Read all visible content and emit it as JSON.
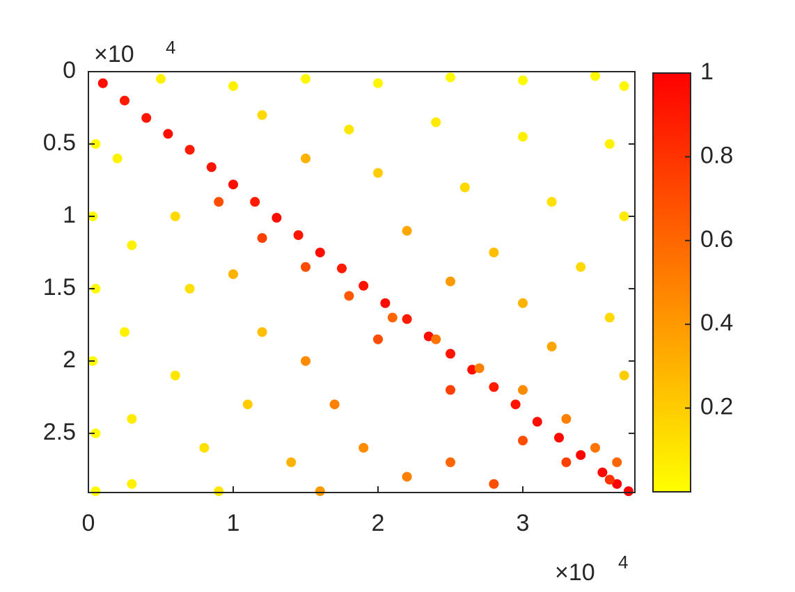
{
  "chart_data": {
    "type": "scatter",
    "x": [
      1000,
      2500,
      4000,
      5500,
      7000,
      8500,
      10000,
      11500,
      13000,
      14500,
      16000,
      17500,
      19000,
      20500,
      22000,
      23500,
      25000,
      26500,
      28000,
      29500,
      31000,
      32500,
      34000,
      35500,
      36500,
      37300,
      9000,
      12000,
      15000,
      18000,
      21000,
      24000,
      27000,
      30000,
      33000,
      35000,
      36500,
      20000,
      25000,
      30000,
      33000,
      36000,
      5000,
      10000,
      15000,
      20000,
      25000,
      30000,
      35000,
      37000,
      12000,
      18000,
      24000,
      30000,
      36000,
      15000,
      20000,
      26000,
      32000,
      37000,
      22000,
      28000,
      34000,
      25000,
      30000,
      36000,
      32000,
      37000,
      500,
      300,
      500,
      300,
      500,
      500,
      2000,
      3000,
      2500,
      3000,
      3000,
      6000,
      7000,
      6000,
      8000,
      9000,
      10000,
      12000,
      11000,
      14000,
      15000,
      17000,
      19000,
      22000,
      25000,
      28000,
      16000
    ],
    "values": [
      800,
      2000,
      3200,
      4300,
      5400,
      6600,
      7800,
      9000,
      10100,
      11300,
      12500,
      13600,
      14800,
      16000,
      17100,
      18300,
      19500,
      20600,
      21800,
      23000,
      24200,
      25300,
      26500,
      27700,
      28500,
      29000,
      9000,
      11500,
      13500,
      15500,
      17000,
      18500,
      20500,
      22000,
      24000,
      26000,
      27000,
      18500,
      22000,
      25500,
      27000,
      28200,
      500,
      1000,
      500,
      800,
      400,
      600,
      300,
      1000,
      3000,
      4000,
      3500,
      4500,
      5000,
      6000,
      7000,
      8000,
      9000,
      10000,
      11000,
      12500,
      13500,
      14500,
      16000,
      17000,
      19000,
      21000,
      5000,
      10000,
      15000,
      20000,
      25000,
      29000,
      6000,
      12000,
      18000,
      24000,
      28500,
      10000,
      15000,
      21000,
      26000,
      29000,
      14000,
      18000,
      23000,
      27000,
      20000,
      23000,
      26000,
      28000,
      27000,
      28500,
      29000
    ],
    "color_values": [
      0.95,
      0.9,
      0.92,
      0.95,
      0.9,
      0.93,
      0.95,
      0.9,
      0.95,
      0.92,
      0.95,
      0.9,
      0.93,
      0.95,
      0.9,
      0.95,
      0.92,
      0.95,
      0.9,
      0.93,
      0.95,
      0.97,
      0.98,
      0.98,
      1.0,
      1.0,
      0.7,
      0.75,
      0.7,
      0.65,
      0.6,
      0.55,
      0.5,
      0.45,
      0.5,
      0.55,
      0.6,
      0.7,
      0.75,
      0.7,
      0.75,
      0.8,
      0.05,
      0.05,
      0.03,
      0.03,
      0.02,
      0.02,
      0.02,
      0.03,
      0.15,
      0.1,
      0.08,
      0.06,
      0.05,
      0.3,
      0.2,
      0.15,
      0.12,
      0.08,
      0.35,
      0.25,
      0.15,
      0.4,
      0.3,
      0.15,
      0.35,
      0.2,
      0.02,
      0.02,
      0.02,
      0.02,
      0.02,
      0.02,
      0.05,
      0.05,
      0.05,
      0.08,
      0.05,
      0.15,
      0.12,
      0.1,
      0.12,
      0.1,
      0.3,
      0.25,
      0.2,
      0.3,
      0.45,
      0.5,
      0.45,
      0.5,
      0.6,
      0.7,
      0.4
    ],
    "xlim": [
      0,
      37740
    ],
    "ylim": [
      0,
      29090
    ],
    "y_reversed": true,
    "xticks": [
      0,
      {
        "value": 10000,
        "label": "1"
      },
      {
        "value": 20000,
        "label": "2"
      },
      {
        "value": 30000,
        "label": "3"
      }
    ],
    "yticks": [
      0,
      {
        "value": 5000,
        "label": "0.5"
      },
      {
        "value": 10000,
        "label": "1"
      },
      {
        "value": 15000,
        "label": "1.5"
      },
      {
        "value": 20000,
        "label": "2"
      },
      {
        "value": 25000,
        "label": "2.5"
      }
    ],
    "x_exponent": {
      "base": "×10",
      "power": "4"
    },
    "y_exponent": {
      "base": "×10",
      "power": "4"
    },
    "clim": [
      0,
      1
    ],
    "cticks": [
      0.2,
      0.4,
      0.6,
      0.8,
      1
    ],
    "colormap": [
      "#ffff00",
      "#ff0000"
    ]
  }
}
